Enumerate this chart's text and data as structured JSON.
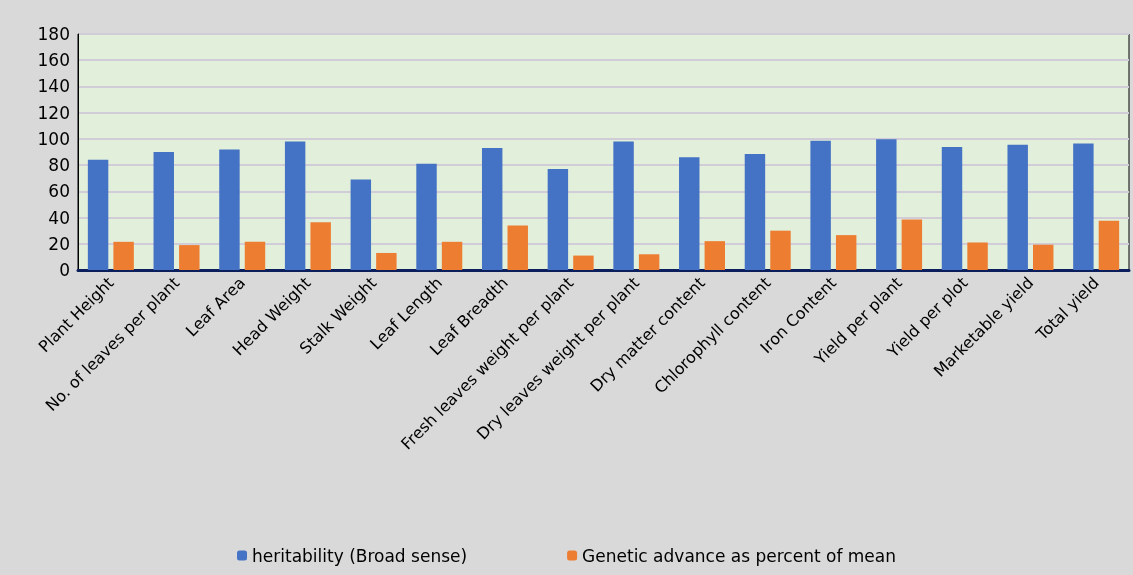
{
  "chart_data": {
    "type": "bar",
    "categories": [
      "Plant Height",
      "No. of leaves per plant",
      "Leaf Area",
      "Head Weight",
      "Stalk Weight",
      "Leaf Length",
      "Leaf Breadth",
      "Fresh leaves weight per plant",
      "Dry leaves weight per plant",
      "Dry matter content",
      "Chlorophyll content",
      "Iron Content",
      "Yield per plant",
      "Yield per plot",
      "Marketable yield",
      "Total yield"
    ],
    "series": [
      {
        "name": "heritability (Broad sense)",
        "color": "#4472c4",
        "values": [
          84,
          90,
          92,
          98,
          69,
          81,
          93,
          77,
          98,
          86,
          88.5,
          98.6,
          99.7,
          93.8,
          95.5,
          96.4
        ]
      },
      {
        "name": "Genetic advance as percent of mean",
        "color": "#ed7d31",
        "values": [
          21.5,
          19,
          21.5,
          36.5,
          13,
          21.5,
          34,
          11,
          12,
          22,
          30,
          26.6,
          38.6,
          21,
          19.3,
          37.5
        ]
      }
    ],
    "ylim": [
      0,
      180
    ],
    "yticks": [
      0,
      20,
      40,
      60,
      80,
      100,
      120,
      140,
      160,
      180
    ],
    "grid": "y",
    "legend": "bottom"
  }
}
